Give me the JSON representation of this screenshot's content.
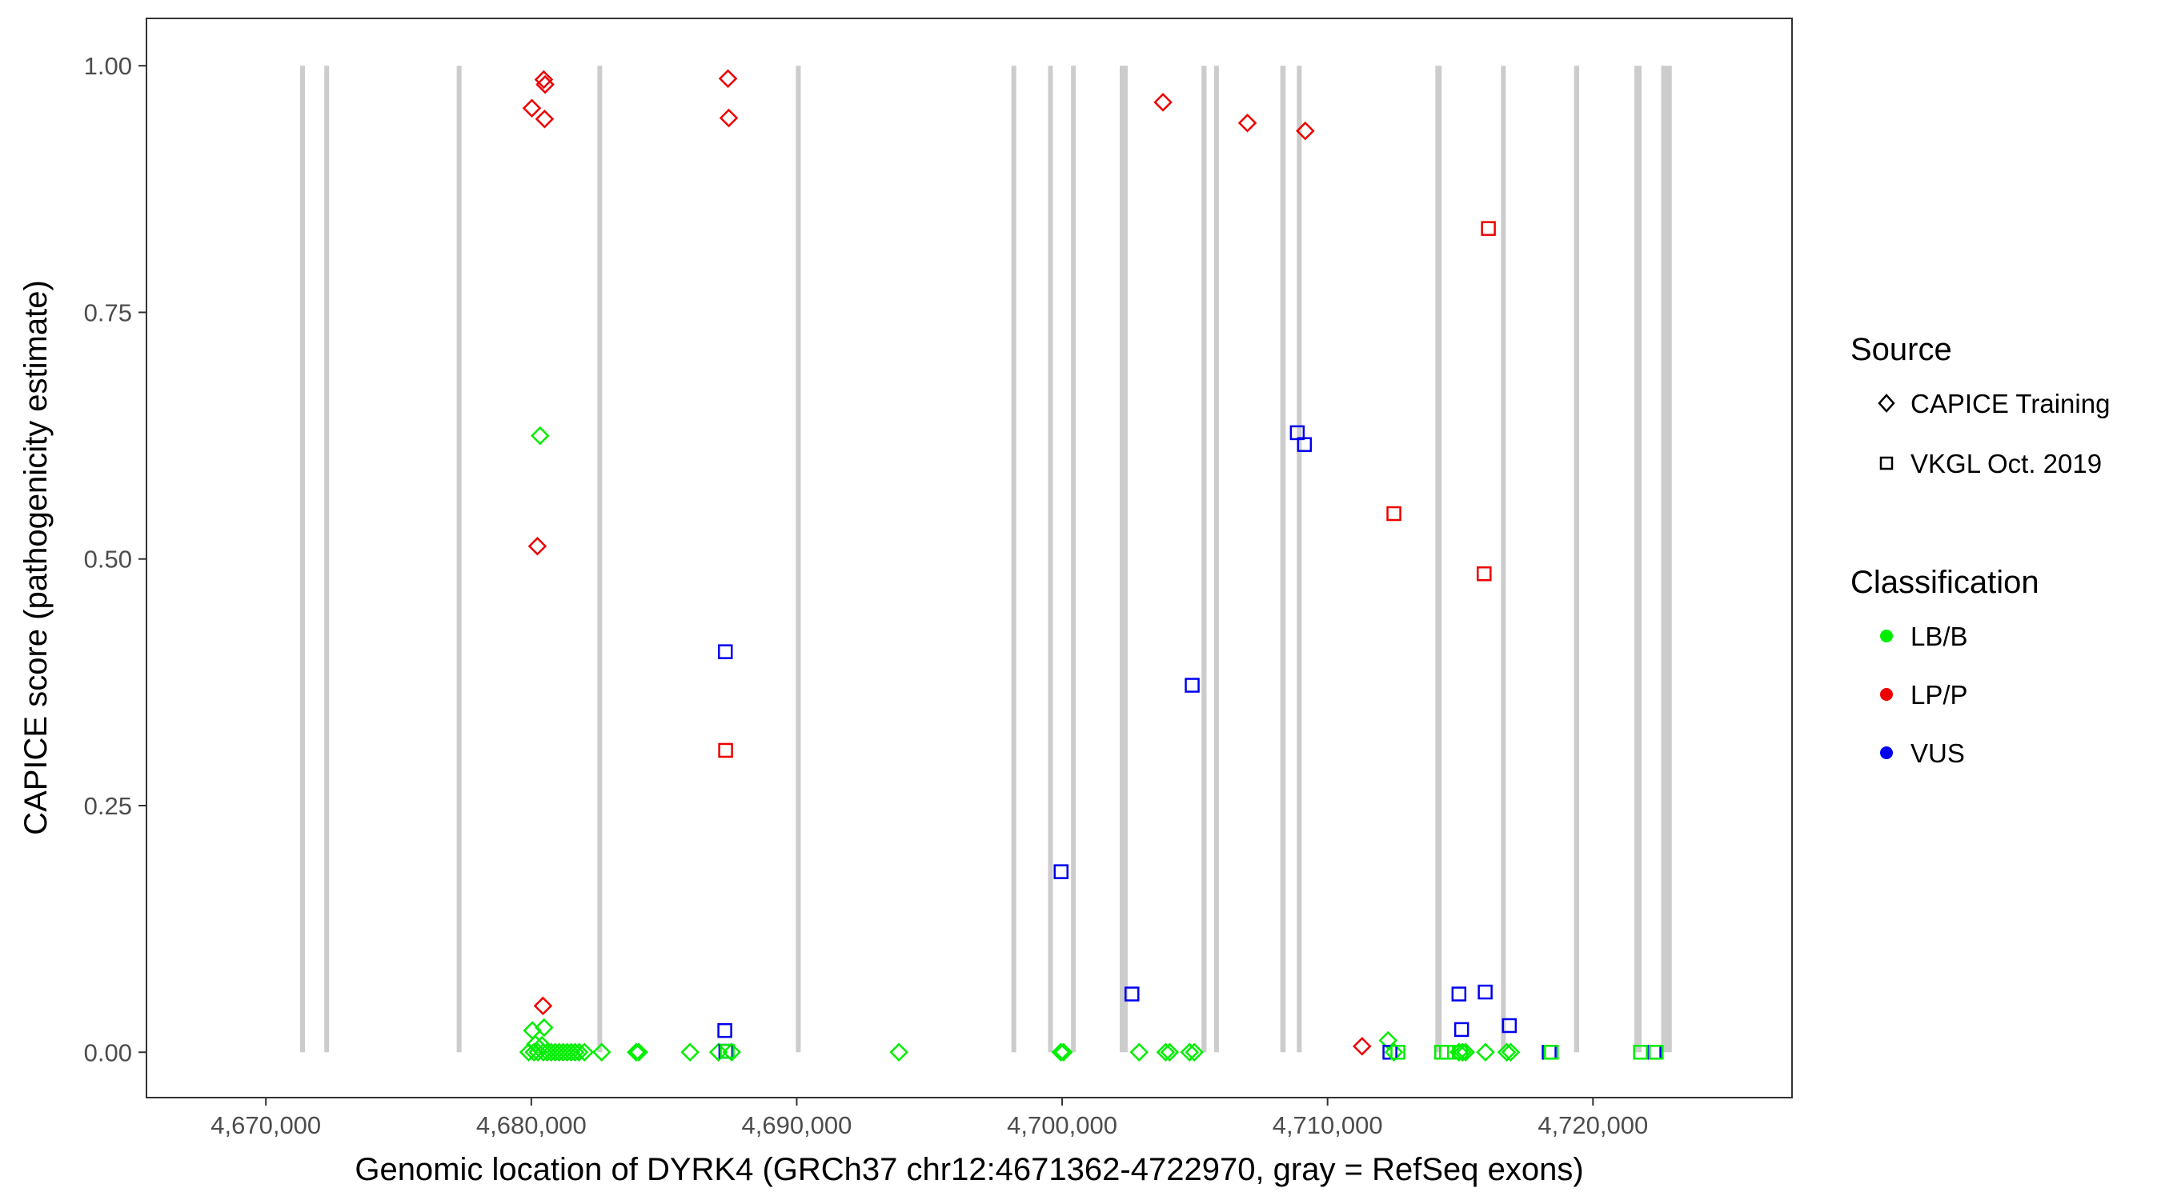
{
  "chart_data": {
    "type": "scatter",
    "title": "",
    "xlabel": "Genomic location of DYRK4 (GRCh37 chr12:4671362-4722970, gray = RefSeq exons)",
    "ylabel": "CAPICE score (pathogenicity estimate)",
    "xlim": [
      4665500,
      4727500
    ],
    "ylim": [
      -0.046,
      1.048
    ],
    "x_ticks": [
      4670000,
      4680000,
      4690000,
      4700000,
      4710000,
      4720000
    ],
    "x_tick_labels": [
      "4,670,000",
      "4,680,000",
      "4,690,000",
      "4,700,000",
      "4,710,000",
      "4,720,000"
    ],
    "y_ticks": [
      0,
      0.25,
      0.5,
      0.75,
      1
    ],
    "y_tick_labels": [
      "0.00",
      "0.25",
      "0.50",
      "0.75",
      "1.00"
    ],
    "grid": false,
    "exons": [
      [
        4671320,
        4671440
      ],
      [
        4672230,
        4672350
      ],
      [
        4677220,
        4677340
      ],
      [
        4682520,
        4682640
      ],
      [
        4690010,
        4690110
      ],
      [
        4698120,
        4698240
      ],
      [
        4699500,
        4699620
      ],
      [
        4700360,
        4700490
      ],
      [
        4702170,
        4702470
      ],
      [
        4705250,
        4705440
      ],
      [
        4705740,
        4705890
      ],
      [
        4708220,
        4708420
      ],
      [
        4708860,
        4709010
      ],
      [
        4714060,
        4714300
      ],
      [
        4716550,
        4716700
      ],
      [
        4719290,
        4719480
      ],
      [
        4721560,
        4721830
      ],
      [
        4722570,
        4722970
      ]
    ],
    "series": [
      {
        "source": "CAPICE Training",
        "classification": "LP/P",
        "points": [
          [
            4680020,
            0.957
          ],
          [
            4680470,
            0.986
          ],
          [
            4680520,
            0.981
          ],
          [
            4680500,
            0.946
          ],
          [
            4687410,
            0.987
          ],
          [
            4687440,
            0.947
          ],
          [
            4703800,
            0.963
          ],
          [
            4706980,
            0.942
          ],
          [
            4709160,
            0.934
          ],
          [
            4680230,
            0.513
          ],
          [
            4680440,
            0.047
          ],
          [
            4711300,
            0.006
          ]
        ]
      },
      {
        "source": "CAPICE Training",
        "classification": "LB/B",
        "points": [
          [
            4680330,
            0.625
          ],
          [
            4680040,
            0.022
          ],
          [
            4680480,
            0.025
          ],
          [
            4680150,
            0.008
          ],
          [
            4680400,
            0.007
          ],
          [
            4679900,
            0.0
          ],
          [
            4680100,
            0.0
          ],
          [
            4680250,
            0.0
          ],
          [
            4680450,
            0.0
          ],
          [
            4680600,
            0.0
          ],
          [
            4680750,
            0.0
          ],
          [
            4680900,
            0.0
          ],
          [
            4681050,
            0.0
          ],
          [
            4681200,
            0.0
          ],
          [
            4681350,
            0.0
          ],
          [
            4681500,
            0.0
          ],
          [
            4681650,
            0.0
          ],
          [
            4681800,
            0.0
          ],
          [
            4682000,
            0.0
          ],
          [
            4682650,
            0.0
          ],
          [
            4683950,
            0.0
          ],
          [
            4684050,
            0.0
          ],
          [
            4685980,
            0.0
          ],
          [
            4687050,
            0.0
          ],
          [
            4687550,
            0.0
          ],
          [
            4693850,
            0.0
          ],
          [
            4699950,
            0.0
          ],
          [
            4700050,
            0.0
          ],
          [
            4702900,
            0.0
          ],
          [
            4703900,
            0.0
          ],
          [
            4704050,
            0.0
          ],
          [
            4704800,
            0.0
          ],
          [
            4704980,
            0.0
          ],
          [
            4712280,
            0.012
          ],
          [
            4712500,
            0.0
          ],
          [
            4714950,
            0.0
          ],
          [
            4715080,
            0.0
          ],
          [
            4715200,
            0.0
          ],
          [
            4715950,
            0.0
          ],
          [
            4716750,
            0.0
          ],
          [
            4716900,
            0.0
          ]
        ]
      },
      {
        "source": "VKGL Oct. 2019",
        "classification": "LP/P",
        "points": [
          [
            4716060,
            0.835
          ],
          [
            4712500,
            0.546
          ],
          [
            4715900,
            0.485
          ],
          [
            4687320,
            0.306
          ]
        ]
      },
      {
        "source": "VKGL Oct. 2019",
        "classification": "VUS",
        "points": [
          [
            4708860,
            0.628
          ],
          [
            4709130,
            0.616
          ],
          [
            4687310,
            0.406
          ],
          [
            4704900,
            0.372
          ],
          [
            4699960,
            0.183
          ],
          [
            4702630,
            0.059
          ],
          [
            4714950,
            0.059
          ],
          [
            4715940,
            0.061
          ],
          [
            4716850,
            0.027
          ],
          [
            4687290,
            0.022
          ],
          [
            4715050,
            0.023
          ],
          [
            4687330,
            0.001
          ],
          [
            4712350,
            0.0
          ],
          [
            4718350,
            0.0
          ],
          [
            4722300,
            0.0
          ]
        ]
      },
      {
        "source": "VKGL Oct. 2019",
        "classification": "LB/B",
        "points": [
          [
            4687380,
            0.001
          ],
          [
            4712650,
            0.0
          ],
          [
            4714300,
            0.0
          ],
          [
            4714480,
            0.0
          ],
          [
            4715020,
            0.0
          ],
          [
            4718430,
            0.0
          ],
          [
            4721790,
            0.0
          ],
          [
            4722380,
            0.0
          ]
        ]
      }
    ],
    "legend": {
      "position": "right",
      "source_title": "Source",
      "source_items": [
        {
          "label": "CAPICE Training",
          "marker": "diamond"
        },
        {
          "label": "VKGL Oct. 2019",
          "marker": "square"
        }
      ],
      "class_title": "Classification",
      "class_items": [
        {
          "label": "LB/B",
          "color": "#00ee00"
        },
        {
          "label": "LP/P",
          "color": "#ee0000"
        },
        {
          "label": "VUS",
          "color": "#0000ee"
        }
      ]
    },
    "colors": {
      "LB/B": "#00ee00",
      "LP/P": "#ee0000",
      "VUS": "#0000ee",
      "exon": "#cccccc",
      "frame": "#333333",
      "text": "#4d4d4d"
    }
  }
}
